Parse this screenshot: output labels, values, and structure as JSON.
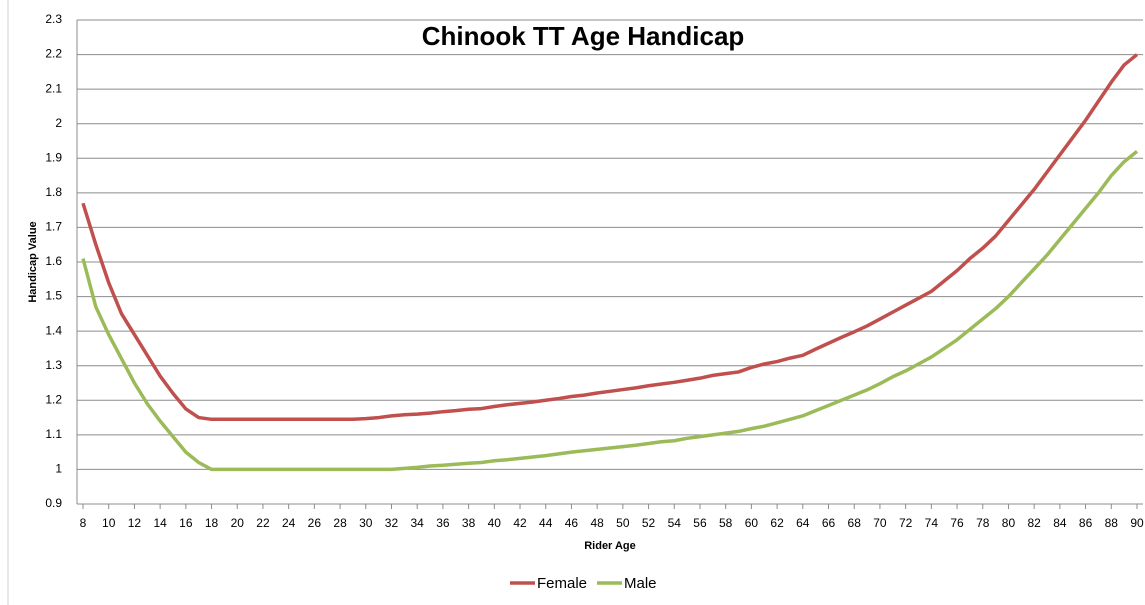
{
  "chart_data": {
    "type": "line",
    "title": "Chinook TT  Age Handicap",
    "xlabel": "Rider Age",
    "ylabel": "Handicap Value",
    "x": [
      8,
      9,
      10,
      11,
      12,
      13,
      14,
      15,
      16,
      17,
      18,
      19,
      20,
      21,
      22,
      23,
      24,
      25,
      26,
      27,
      28,
      29,
      30,
      31,
      32,
      33,
      34,
      35,
      36,
      37,
      38,
      39,
      40,
      41,
      42,
      43,
      44,
      45,
      46,
      47,
      48,
      49,
      50,
      51,
      52,
      53,
      54,
      55,
      56,
      57,
      58,
      59,
      60,
      61,
      62,
      63,
      64,
      65,
      66,
      67,
      68,
      69,
      70,
      71,
      72,
      73,
      74,
      75,
      76,
      77,
      78,
      79,
      80,
      81,
      82,
      83,
      84,
      85,
      86,
      87,
      88,
      89,
      90
    ],
    "xlim": [
      8,
      90
    ],
    "xticks": [
      8,
      10,
      12,
      14,
      16,
      18,
      20,
      22,
      24,
      26,
      28,
      30,
      32,
      34,
      36,
      38,
      40,
      42,
      44,
      46,
      48,
      50,
      52,
      54,
      56,
      58,
      60,
      62,
      64,
      66,
      68,
      70,
      72,
      74,
      76,
      78,
      80,
      82,
      84,
      86,
      88,
      90
    ],
    "ylim": [
      0.9,
      2.3
    ],
    "yticks": [
      0.9,
      1,
      1.1,
      1.2,
      1.3,
      1.4,
      1.5,
      1.6,
      1.7,
      1.8,
      1.9,
      2,
      2.1,
      2.2,
      2.3
    ],
    "grid": true,
    "legend": "bottom",
    "series": [
      {
        "name": "Female",
        "color": "#c0504d",
        "values": [
          1.77,
          1.65,
          1.54,
          1.45,
          1.39,
          1.33,
          1.27,
          1.22,
          1.175,
          1.15,
          1.145,
          1.145,
          1.145,
          1.145,
          1.145,
          1.145,
          1.145,
          1.145,
          1.145,
          1.145,
          1.145,
          1.145,
          1.147,
          1.15,
          1.155,
          1.158,
          1.16,
          1.163,
          1.167,
          1.17,
          1.174,
          1.176,
          1.182,
          1.187,
          1.191,
          1.195,
          1.2,
          1.205,
          1.211,
          1.215,
          1.221,
          1.226,
          1.231,
          1.236,
          1.242,
          1.247,
          1.252,
          1.258,
          1.264,
          1.272,
          1.277,
          1.282,
          1.295,
          1.305,
          1.312,
          1.322,
          1.33,
          1.348,
          1.365,
          1.382,
          1.398,
          1.415,
          1.435,
          1.455,
          1.475,
          1.495,
          1.515,
          1.545,
          1.575,
          1.61,
          1.64,
          1.675,
          1.72,
          1.765,
          1.81,
          1.86,
          1.91,
          1.96,
          2.01,
          2.065,
          2.12,
          2.17,
          2.2
        ]
      },
      {
        "name": "Male",
        "color": "#9bbb59",
        "values": [
          1.61,
          1.47,
          1.39,
          1.32,
          1.25,
          1.19,
          1.14,
          1.095,
          1.05,
          1.02,
          1.0,
          1.0,
          1.0,
          1.0,
          1.0,
          1.0,
          1.0,
          1.0,
          1.0,
          1.0,
          1.0,
          1.0,
          1.0,
          1.0,
          1.0,
          1.003,
          1.006,
          1.01,
          1.012,
          1.015,
          1.018,
          1.02,
          1.025,
          1.028,
          1.032,
          1.036,
          1.04,
          1.045,
          1.05,
          1.054,
          1.058,
          1.062,
          1.066,
          1.07,
          1.075,
          1.08,
          1.083,
          1.09,
          1.095,
          1.1,
          1.105,
          1.11,
          1.118,
          1.125,
          1.135,
          1.145,
          1.155,
          1.17,
          1.185,
          1.2,
          1.215,
          1.23,
          1.248,
          1.268,
          1.285,
          1.305,
          1.325,
          1.35,
          1.375,
          1.405,
          1.435,
          1.465,
          1.5,
          1.54,
          1.58,
          1.62,
          1.665,
          1.71,
          1.755,
          1.8,
          1.85,
          1.89,
          1.92
        ]
      }
    ]
  }
}
